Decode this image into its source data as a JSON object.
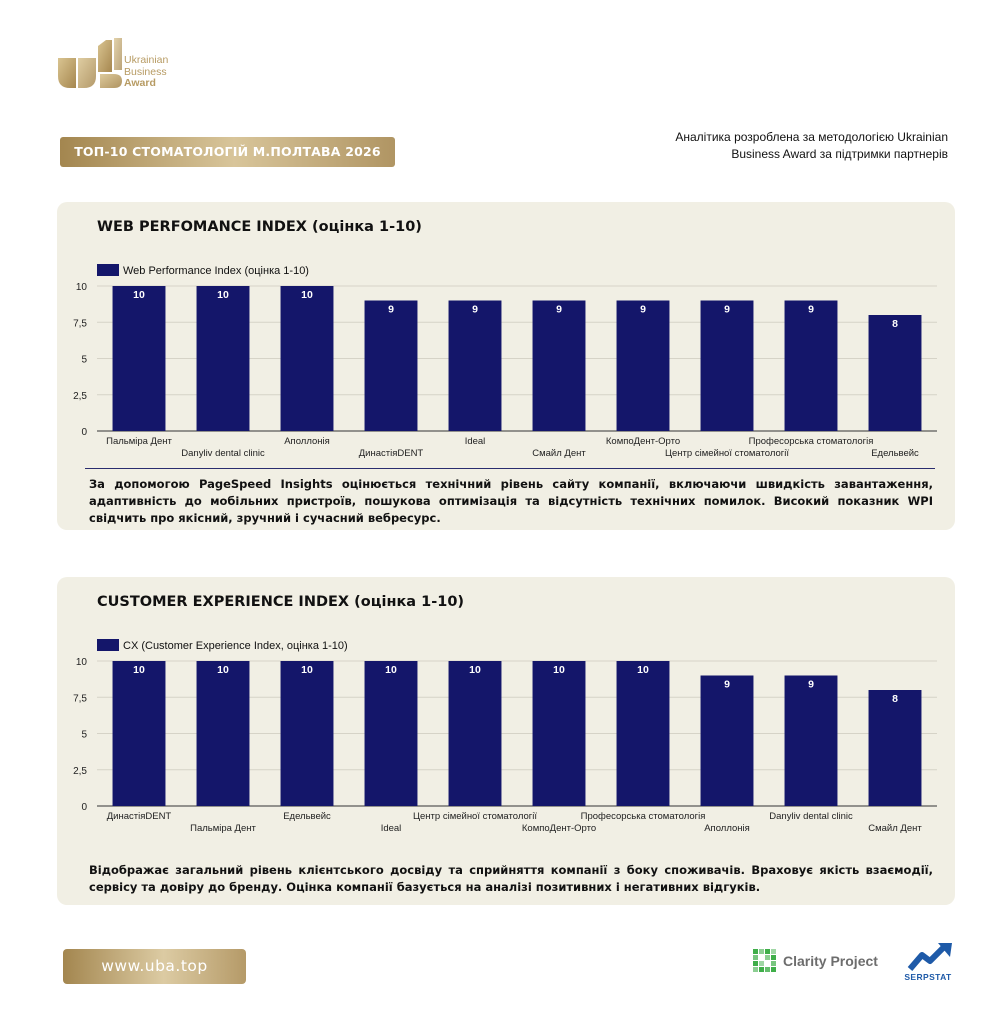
{
  "logo": {
    "line1": "Ukrainian",
    "line2": "Business",
    "line3": "Award",
    "color": "#b79b63"
  },
  "header": {
    "title": "ТОП-10 СТОМАТОЛОГІЙ М.ПОЛТАВА 2026",
    "note": "Аналітика розроблена за методологією Ukrainian Business Award за підтримки партнерів"
  },
  "colors": {
    "bar": "#14166a",
    "gold": "#b79b63",
    "panel": "#f1efe4"
  },
  "sections": [
    {
      "title": "WEB PERFOMANCE INDEX (оцінка 1-10)",
      "description": "За допомогою PageSpeed Insights оцінюється технічний рівень сайту компанії, включаючи швидкість завантаження, адаптивність до мобільних пристроїв, пошукова оптимізація та відсутність технічних помилок. Високий показник WPI свідчить про якісний, зручний і сучасний вебресурс."
    },
    {
      "title": "CUSTOMER EXPERIENCE INDEX (оцінка 1-10)",
      "description": "Відображає загальний рівень клієнтського досвіду та сприйняття компанії з боку споживачів. Враховує якість взаємодії, сервісу та довіру до бренду. Оцінка компанії базується на аналізі позитивних і негативних відгуків."
    }
  ],
  "chart_data": [
    {
      "type": "bar",
      "title": "WEB PERFOMANCE INDEX (оцінка 1-10)",
      "legend": "Web Performance Index (оцінка 1-10)",
      "categories": [
        "Пальміра Дент",
        "Danyliv dental clinic",
        "Аполлонія",
        "ДинастіяDENT",
        "Ideal",
        "Смайл Дент",
        "КомпоДент-Орто",
        "Центр сімейної стоматології",
        "Професорська стоматологія",
        "Едельвейс"
      ],
      "values": [
        10,
        10,
        10,
        9,
        9,
        9,
        9,
        9,
        9,
        8
      ],
      "yticks": [
        "0",
        "2,5",
        "5",
        "7,5",
        "10"
      ],
      "ylim": [
        0,
        10
      ],
      "grid": true,
      "legend_position": "top-left"
    },
    {
      "type": "bar",
      "title": "CUSTOMER EXPERIENCE INDEX (оцінка 1-10)",
      "legend": "CX (Customer Experience Index, оцінка 1-10)",
      "categories": [
        "ДинастіяDENT",
        "Пальміра Дент",
        "Едельвейс",
        "Ideal",
        "Центр сімейної стоматології",
        "КомпоДент-Орто",
        "Професорська стоматологія",
        "Аполлонія",
        "Danyliv dental clinic",
        "Смайл Дент"
      ],
      "values": [
        10,
        10,
        10,
        10,
        10,
        10,
        10,
        9,
        9,
        8
      ],
      "yticks": [
        "0",
        "2,5",
        "5",
        "7,5",
        "10"
      ],
      "ylim": [
        0,
        10
      ],
      "grid": true,
      "legend_position": "top-left"
    }
  ],
  "footer": {
    "link": "www.uba.top",
    "partners": [
      "Clarity Project",
      "SERPSTAT"
    ]
  }
}
